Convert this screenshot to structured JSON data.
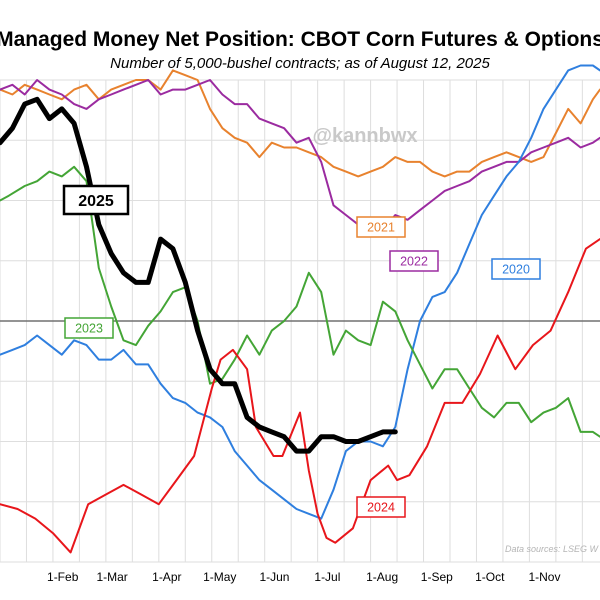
{
  "chart_data": {
    "type": "line",
    "title": "Managed Money Net Position: CBOT Corn Futures & Options",
    "subtitle": "Number of 5,000-bushel contracts; as of August 12, 2025",
    "watermark": "@kannbwx",
    "source": "Data sources: LSEG W",
    "xlabel": "",
    "ylabel": "",
    "grid": true,
    "x_ticks": [
      "1-Feb",
      "1-Mar",
      "1-Apr",
      "1-May",
      "1-Jun",
      "1-Jul",
      "1-Aug",
      "1-Sep",
      "1-Oct",
      "1-Nov"
    ],
    "x_tick_days": [
      31,
      59,
      90,
      120,
      151,
      181,
      212,
      243,
      273,
      304
    ],
    "xlim": [
      0,
      340
    ],
    "ylim": [
      -50,
      50
    ],
    "zero_line": true,
    "colors": {
      "2025": "#000000",
      "2024": "#e8161b",
      "2023": "#44a536",
      "2022": "#9b2ba0",
      "2021": "#e8822e",
      "2020": "#2f7fdf"
    },
    "series": [
      {
        "name": "2025",
        "x": [
          0,
          7,
          14,
          21,
          28,
          35,
          42,
          49,
          56,
          63,
          70,
          77,
          84,
          91,
          98,
          105,
          112,
          119,
          126,
          133,
          140,
          147,
          154,
          161,
          168,
          175,
          182,
          189,
          196,
          203,
          210,
          217,
          224
        ],
        "y": [
          37,
          40,
          45,
          46,
          42,
          44,
          41,
          32,
          20,
          14,
          10,
          8,
          8,
          17,
          15,
          8,
          -2,
          -10,
          -13,
          -13,
          -20,
          -22,
          -23,
          -24,
          -27,
          -27,
          -24,
          -24,
          -25,
          -25,
          -24,
          -23,
          -23
        ]
      },
      {
        "name": "2024",
        "x": [
          0,
          10,
          20,
          30,
          40,
          50,
          60,
          70,
          80,
          90,
          100,
          110,
          120,
          125,
          132,
          140,
          145,
          155,
          160,
          170,
          175,
          180,
          185,
          190,
          200,
          210,
          220,
          225,
          232,
          242,
          252,
          262,
          272,
          282,
          292,
          302,
          312,
          322,
          332,
          340
        ],
        "y": [
          -38,
          -39,
          -41,
          -44,
          -48,
          -38,
          -36,
          -34,
          -36,
          -38,
          -33,
          -28,
          -14,
          -8,
          -6,
          -10,
          -22,
          -28,
          -28,
          -19,
          -31,
          -40,
          -45,
          -46,
          -43,
          -33,
          -30,
          -33,
          -32,
          -26,
          -17,
          -17,
          -11,
          -3,
          -10,
          -5,
          -2,
          6,
          15,
          17
        ]
      },
      {
        "name": "2023",
        "x": [
          0,
          5,
          14,
          21,
          28,
          35,
          42,
          49,
          56,
          63,
          70,
          77,
          84,
          91,
          98,
          105,
          112,
          119,
          126,
          133,
          140,
          147,
          154,
          161,
          168,
          175,
          182,
          189,
          196,
          203,
          210,
          217,
          224,
          231,
          238,
          245,
          252,
          259,
          266,
          273,
          280,
          287,
          294,
          301,
          308,
          315,
          322,
          329,
          336,
          340
        ],
        "y": [
          25,
          26,
          28,
          29,
          31,
          30,
          32,
          29,
          11,
          3,
          -4,
          -5,
          -1,
          2,
          6,
          7,
          0,
          -13,
          -12,
          -8,
          -3,
          -7,
          -2,
          0,
          3,
          10,
          6,
          -7,
          -2,
          -4,
          -5,
          4,
          2,
          -4,
          -9,
          -14,
          -10,
          -10,
          -14,
          -18,
          -20,
          -17,
          -17,
          -21,
          -19,
          -18,
          -16,
          -23,
          -23,
          -24
        ]
      },
      {
        "name": "2022",
        "x": [
          0,
          7,
          14,
          21,
          28,
          35,
          42,
          49,
          56,
          63,
          70,
          77,
          84,
          91,
          98,
          105,
          112,
          119,
          126,
          133,
          140,
          147,
          154,
          161,
          168,
          175,
          182,
          189,
          196,
          203,
          210,
          217,
          224,
          231,
          238,
          245,
          252,
          259,
          266,
          273,
          280,
          287,
          294,
          301,
          308,
          315,
          322,
          329,
          336,
          340
        ],
        "y": [
          48,
          49,
          47,
          50,
          48,
          47,
          45,
          44,
          46,
          47,
          48,
          49,
          50,
          47,
          48,
          48,
          49,
          50,
          47,
          45,
          45,
          42,
          41,
          40,
          37,
          38,
          33,
          24,
          22,
          20,
          20,
          19,
          22,
          21,
          23,
          25,
          27,
          28,
          29,
          31,
          32,
          33,
          33,
          35,
          36,
          37,
          38,
          36,
          37,
          38
        ]
      },
      {
        "name": "2021",
        "x": [
          0,
          7,
          14,
          21,
          28,
          35,
          42,
          49,
          56,
          63,
          70,
          77,
          84,
          91,
          98,
          105,
          112,
          119,
          126,
          133,
          140,
          147,
          154,
          161,
          168,
          175,
          182,
          189,
          196,
          203,
          210,
          217,
          224,
          231,
          238,
          245,
          252,
          259,
          266,
          273,
          280,
          287,
          294,
          301,
          308,
          315,
          322,
          329,
          336,
          340
        ],
        "y": [
          48,
          47,
          49,
          48,
          47,
          46,
          48,
          49,
          46,
          48,
          49,
          50,
          50,
          48,
          52,
          51,
          50,
          44,
          40,
          38,
          37,
          34,
          37,
          36,
          36,
          35,
          34,
          32,
          31,
          30,
          31,
          32,
          34,
          33,
          33,
          31,
          30,
          31,
          31,
          33,
          34,
          35,
          34,
          33,
          34,
          39,
          44,
          41,
          46,
          48
        ]
      },
      {
        "name": "2020",
        "x": [
          0,
          7,
          14,
          21,
          28,
          35,
          42,
          49,
          56,
          63,
          70,
          77,
          84,
          91,
          98,
          105,
          112,
          119,
          126,
          133,
          140,
          147,
          154,
          161,
          168,
          175,
          182,
          189,
          196,
          203,
          210,
          217,
          224,
          231,
          238,
          245,
          252,
          259,
          266,
          273,
          280,
          287,
          294,
          301,
          308,
          315,
          322,
          329,
          336,
          340
        ],
        "y": [
          -7,
          -6,
          -5,
          -3,
          -5,
          -7,
          -4,
          -5,
          -8,
          -8,
          -6,
          -9,
          -9,
          -13,
          -16,
          -17,
          -19,
          -20,
          -22,
          -27,
          -30,
          -33,
          -35,
          -37,
          -39,
          -40,
          -41,
          -35,
          -27,
          -25,
          -25,
          -26,
          -22,
          -10,
          0,
          5,
          6,
          10,
          16,
          22,
          26,
          30,
          33,
          38,
          44,
          48,
          52,
          53,
          53,
          52
        ]
      }
    ],
    "series_labels": [
      {
        "name": "2025",
        "text": "2025"
      },
      {
        "name": "2024",
        "text": "2024"
      },
      {
        "name": "2023",
        "text": "2023"
      },
      {
        "name": "2022",
        "text": "2022"
      },
      {
        "name": "2021",
        "text": "2021"
      },
      {
        "name": "2020",
        "text": "2020"
      }
    ]
  }
}
